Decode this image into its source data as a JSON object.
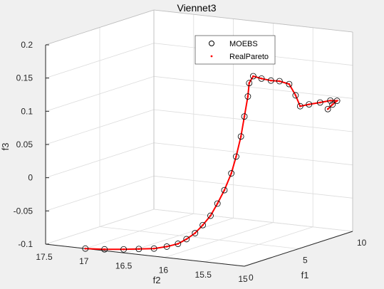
{
  "colors": {
    "background": "#f0f0f0",
    "plot_area": "#ffffff",
    "moebs": "#000000",
    "real_pareto": "#ff0000",
    "grid": "#dcdcdc",
    "axis": "#262626"
  },
  "chart_data": {
    "type": "scatter",
    "title": "Viennet3",
    "xlabel": "f1",
    "ylabel": "f2",
    "zlabel": "f3",
    "xlim": [
      0,
      10
    ],
    "ylim": [
      15,
      17.5
    ],
    "zlim": [
      -0.1,
      0.2
    ],
    "x_ticks": [
      "0",
      "5",
      "10"
    ],
    "y_ticks": [
      "15",
      "15.5",
      "16",
      "16.5",
      "17",
      "17.5"
    ],
    "z_ticks": [
      "-0.1",
      "-0.05",
      "0",
      "0.05",
      "0.1",
      "0.15",
      "0.2"
    ],
    "grid": true,
    "legend_position": "top-center",
    "legend": [
      "MOEBS",
      "RealPareto"
    ],
    "series": [
      {
        "name": "MOEBS",
        "marker": "circle",
        "points": [
          [
            0.0,
            17.0,
            -0.1
          ],
          [
            0.3,
            16.8,
            -0.1
          ],
          [
            0.6,
            16.6,
            -0.099
          ],
          [
            0.9,
            16.45,
            -0.098
          ],
          [
            1.2,
            16.3,
            -0.097
          ],
          [
            1.5,
            16.18,
            -0.094
          ],
          [
            1.8,
            16.08,
            -0.09
          ],
          [
            2.0,
            16.0,
            -0.083
          ],
          [
            2.2,
            15.92,
            -0.074
          ],
          [
            2.4,
            15.85,
            -0.062
          ],
          [
            2.6,
            15.78,
            -0.048
          ],
          [
            2.8,
            15.72,
            -0.03
          ],
          [
            3.0,
            15.66,
            -0.01
          ],
          [
            3.2,
            15.6,
            0.015
          ],
          [
            3.35,
            15.56,
            0.04
          ],
          [
            3.5,
            15.52,
            0.07
          ],
          [
            3.6,
            15.49,
            0.1
          ],
          [
            3.7,
            15.46,
            0.13
          ],
          [
            3.75,
            15.45,
            0.15
          ],
          [
            3.9,
            15.42,
            0.16
          ],
          [
            4.3,
            15.37,
            0.155
          ],
          [
            4.8,
            15.32,
            0.15
          ],
          [
            5.3,
            15.28,
            0.147
          ],
          [
            5.9,
            15.24,
            0.14
          ],
          [
            6.2,
            15.2,
            0.122
          ],
          [
            6.4,
            15.17,
            0.105
          ],
          [
            7.0,
            15.14,
            0.105
          ],
          [
            7.8,
            15.11,
            0.104
          ],
          [
            8.6,
            15.09,
            0.103
          ],
          [
            9.0,
            15.06,
            0.101
          ],
          [
            8.5,
            15.05,
            0.098
          ],
          [
            8.0,
            15.04,
            0.094
          ]
        ]
      },
      {
        "name": "RealPareto",
        "marker": "dot",
        "points": [
          [
            0.0,
            17.0,
            -0.1
          ],
          [
            0.3,
            16.8,
            -0.1
          ],
          [
            0.6,
            16.6,
            -0.099
          ],
          [
            0.9,
            16.45,
            -0.098
          ],
          [
            1.2,
            16.3,
            -0.097
          ],
          [
            1.5,
            16.18,
            -0.094
          ],
          [
            1.8,
            16.08,
            -0.09
          ],
          [
            2.0,
            16.0,
            -0.083
          ],
          [
            2.2,
            15.92,
            -0.074
          ],
          [
            2.4,
            15.85,
            -0.062
          ],
          [
            2.6,
            15.78,
            -0.048
          ],
          [
            2.8,
            15.72,
            -0.03
          ],
          [
            3.0,
            15.66,
            -0.01
          ],
          [
            3.2,
            15.6,
            0.015
          ],
          [
            3.35,
            15.56,
            0.04
          ],
          [
            3.5,
            15.52,
            0.07
          ],
          [
            3.6,
            15.49,
            0.1
          ],
          [
            3.7,
            15.46,
            0.13
          ],
          [
            3.75,
            15.45,
            0.15
          ],
          [
            3.9,
            15.42,
            0.16
          ],
          [
            4.3,
            15.37,
            0.155
          ],
          [
            4.8,
            15.32,
            0.15
          ],
          [
            5.3,
            15.28,
            0.147
          ],
          [
            5.9,
            15.24,
            0.14
          ],
          [
            6.2,
            15.2,
            0.122
          ],
          [
            6.4,
            15.17,
            0.105
          ],
          [
            7.0,
            15.14,
            0.105
          ],
          [
            7.8,
            15.11,
            0.104
          ],
          [
            8.6,
            15.09,
            0.103
          ],
          [
            9.0,
            15.06,
            0.101
          ],
          [
            8.5,
            15.05,
            0.098
          ],
          [
            8.0,
            15.04,
            0.094
          ]
        ]
      }
    ]
  }
}
